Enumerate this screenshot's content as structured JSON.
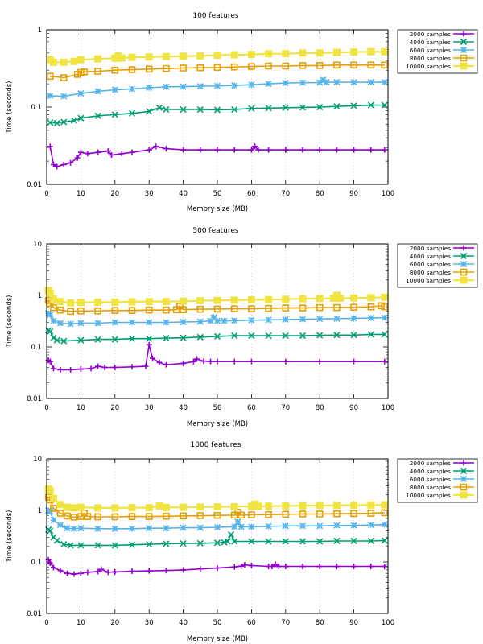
{
  "chart_data": [
    {
      "type": "line",
      "title": "100 features",
      "xlabel": "Memory size (MB)",
      "ylabel": "Time (seconds)",
      "yscale": "log",
      "xlim": [
        0,
        100
      ],
      "ylim": [
        0.01,
        1
      ],
      "xticks": [
        0,
        10,
        20,
        30,
        40,
        50,
        60,
        70,
        80,
        90,
        100
      ],
      "yticks": [
        0.01,
        0.1,
        1
      ],
      "ytick_labels": [
        "0.01",
        "0.1",
        "1"
      ],
      "grid": "vertical dotted",
      "legend": "outside-right-top",
      "series": [
        {
          "name": "2000 samples",
          "color": "#9400d3",
          "marker": "plus",
          "x": [
            1,
            2,
            3,
            5,
            7,
            9,
            10,
            12,
            15,
            18,
            19,
            22,
            25,
            30,
            32,
            35,
            40,
            45,
            50,
            55,
            60,
            61,
            62,
            65,
            70,
            75,
            80,
            85,
            90,
            95,
            99
          ],
          "y": [
            0.031,
            0.018,
            0.017,
            0.018,
            0.019,
            0.022,
            0.026,
            0.025,
            0.026,
            0.027,
            0.024,
            0.025,
            0.026,
            0.028,
            0.031,
            0.029,
            0.028,
            0.028,
            0.028,
            0.028,
            0.028,
            0.031,
            0.028,
            0.028,
            0.028,
            0.028,
            0.028,
            0.028,
            0.028,
            0.028,
            0.028
          ]
        },
        {
          "name": "4000 samples",
          "color": "#009e73",
          "marker": "x",
          "x": [
            1,
            3,
            5,
            8,
            10,
            15,
            20,
            25,
            30,
            33,
            35,
            40,
            45,
            50,
            55,
            60,
            65,
            70,
            75,
            80,
            85,
            90,
            95,
            99
          ],
          "y": [
            0.063,
            0.062,
            0.064,
            0.067,
            0.072,
            0.077,
            0.08,
            0.083,
            0.088,
            0.098,
            0.093,
            0.093,
            0.093,
            0.092,
            0.093,
            0.096,
            0.097,
            0.098,
            0.099,
            0.1,
            0.102,
            0.104,
            0.106,
            0.106
          ]
        },
        {
          "name": "6000 samples",
          "color": "#56b4e9",
          "marker": "star",
          "x": [
            1,
            5,
            10,
            15,
            20,
            25,
            30,
            35,
            40,
            45,
            50,
            55,
            60,
            65,
            70,
            75,
            80,
            81,
            82,
            85,
            90,
            95,
            99
          ],
          "y": [
            0.14,
            0.138,
            0.15,
            0.16,
            0.167,
            0.172,
            0.178,
            0.183,
            0.184,
            0.186,
            0.188,
            0.19,
            0.195,
            0.2,
            0.205,
            0.207,
            0.208,
            0.225,
            0.21,
            0.21,
            0.21,
            0.21,
            0.21
          ]
        },
        {
          "name": "8000 samples",
          "color": "#e69f00",
          "marker": "box",
          "x": [
            1,
            5,
            9,
            10,
            11,
            15,
            20,
            25,
            30,
            35,
            40,
            45,
            50,
            55,
            60,
            65,
            70,
            75,
            80,
            85,
            90,
            95,
            99
          ],
          "y": [
            0.25,
            0.24,
            0.265,
            0.28,
            0.285,
            0.29,
            0.3,
            0.305,
            0.31,
            0.315,
            0.32,
            0.322,
            0.325,
            0.33,
            0.335,
            0.34,
            0.34,
            0.345,
            0.345,
            0.35,
            0.35,
            0.35,
            0.35
          ]
        },
        {
          "name": "10000 samples",
          "color": "#f0e442",
          "marker": "filled-box",
          "x": [
            1,
            2,
            5,
            8,
            10,
            15,
            20,
            21,
            22,
            25,
            30,
            35,
            40,
            45,
            50,
            55,
            60,
            65,
            70,
            75,
            80,
            85,
            90,
            95,
            99
          ],
          "y": [
            0.41,
            0.38,
            0.38,
            0.39,
            0.41,
            0.42,
            0.43,
            0.46,
            0.43,
            0.44,
            0.445,
            0.45,
            0.455,
            0.46,
            0.47,
            0.475,
            0.48,
            0.49,
            0.49,
            0.5,
            0.5,
            0.51,
            0.515,
            0.52,
            0.52
          ]
        }
      ]
    },
    {
      "type": "line",
      "title": "500 features",
      "xlabel": "Memory size (MB)",
      "ylabel": "Time (seconds)",
      "yscale": "log",
      "xlim": [
        0,
        100
      ],
      "ylim": [
        0.01,
        10
      ],
      "xticks": [
        0,
        10,
        20,
        30,
        40,
        50,
        60,
        70,
        80,
        90,
        100
      ],
      "yticks": [
        0.01,
        0.1,
        1,
        10
      ],
      "ytick_labels": [
        "0.01",
        "0.1",
        "1",
        "10"
      ],
      "grid": "vertical dotted",
      "legend": "outside-right-top",
      "series": [
        {
          "name": "2000 samples",
          "color": "#9400d3",
          "marker": "plus",
          "x": [
            0.5,
            1,
            2,
            4,
            7,
            10,
            13,
            15,
            17,
            20,
            25,
            29,
            30,
            31,
            33,
            35,
            40,
            43,
            44,
            46,
            48,
            50,
            55,
            60,
            70,
            80,
            90,
            99
          ],
          "y": [
            0.055,
            0.052,
            0.038,
            0.036,
            0.036,
            0.037,
            0.038,
            0.042,
            0.04,
            0.04,
            0.041,
            0.042,
            0.11,
            0.06,
            0.05,
            0.045,
            0.048,
            0.052,
            0.058,
            0.053,
            0.052,
            0.052,
            0.052,
            0.052,
            0.052,
            0.052,
            0.052,
            0.052
          ]
        },
        {
          "name": "4000 samples",
          "color": "#009e73",
          "marker": "x",
          "x": [
            0.5,
            1,
            2,
            3,
            5,
            10,
            15,
            20,
            25,
            30,
            35,
            40,
            45,
            50,
            55,
            60,
            65,
            70,
            75,
            80,
            85,
            90,
            95,
            99
          ],
          "y": [
            0.21,
            0.2,
            0.15,
            0.135,
            0.13,
            0.135,
            0.14,
            0.14,
            0.145,
            0.145,
            0.148,
            0.15,
            0.155,
            0.16,
            0.165,
            0.165,
            0.165,
            0.165,
            0.165,
            0.168,
            0.17,
            0.17,
            0.175,
            0.175
          ]
        },
        {
          "name": "6000 samples",
          "color": "#56b4e9",
          "marker": "star",
          "x": [
            0.5,
            1,
            2,
            4,
            7,
            10,
            15,
            20,
            25,
            30,
            35,
            40,
            45,
            48,
            49,
            50,
            52,
            55,
            60,
            65,
            70,
            75,
            80,
            85,
            90,
            95,
            99
          ],
          "y": [
            0.45,
            0.42,
            0.32,
            0.29,
            0.28,
            0.29,
            0.29,
            0.3,
            0.3,
            0.3,
            0.3,
            0.305,
            0.31,
            0.32,
            0.375,
            0.32,
            0.32,
            0.325,
            0.33,
            0.335,
            0.34,
            0.345,
            0.35,
            0.355,
            0.36,
            0.365,
            0.37
          ]
        },
        {
          "name": "8000 samples",
          "color": "#e69f00",
          "marker": "box",
          "x": [
            0.5,
            1,
            2,
            4,
            7,
            10,
            15,
            20,
            25,
            30,
            35,
            38,
            39,
            40,
            45,
            50,
            55,
            60,
            65,
            70,
            75,
            80,
            85,
            90,
            95,
            98,
            99
          ],
          "y": [
            0.8,
            0.7,
            0.58,
            0.52,
            0.49,
            0.5,
            0.5,
            0.51,
            0.51,
            0.52,
            0.52,
            0.53,
            0.62,
            0.53,
            0.54,
            0.545,
            0.55,
            0.55,
            0.56,
            0.57,
            0.57,
            0.58,
            0.58,
            0.59,
            0.6,
            0.63,
            0.6
          ]
        },
        {
          "name": "10000 samples",
          "color": "#f0e442",
          "marker": "filled-box",
          "x": [
            0.5,
            1,
            2,
            4,
            7,
            10,
            15,
            20,
            25,
            30,
            35,
            40,
            45,
            50,
            55,
            60,
            65,
            70,
            75,
            80,
            84,
            85,
            86,
            90,
            95,
            99
          ],
          "y": [
            1.25,
            1.1,
            0.85,
            0.76,
            0.72,
            0.73,
            0.74,
            0.74,
            0.75,
            0.76,
            0.76,
            0.77,
            0.79,
            0.8,
            0.81,
            0.82,
            0.83,
            0.84,
            0.86,
            0.87,
            0.88,
            1.0,
            0.88,
            0.89,
            0.9,
            0.92
          ]
        }
      ]
    },
    {
      "type": "line",
      "title": "1000 features",
      "xlabel": "Memory size (MB)",
      "ylabel": "Time (seconds)",
      "yscale": "log",
      "xlim": [
        0,
        100
      ],
      "ylim": [
        0.01,
        10
      ],
      "xticks": [
        0,
        10,
        20,
        30,
        40,
        50,
        60,
        70,
        80,
        90,
        100
      ],
      "yticks": [
        0.01,
        0.1,
        1,
        10
      ],
      "ytick_labels": [
        "0.01",
        "0.1",
        "1",
        "10"
      ],
      "grid": "vertical dotted",
      "legend": "outside-right-top",
      "series": [
        {
          "name": "2000 samples",
          "color": "#9400d3",
          "marker": "plus",
          "x": [
            0.5,
            1,
            2,
            4,
            6,
            8,
            10,
            12,
            15,
            16,
            18,
            20,
            25,
            30,
            35,
            40,
            45,
            50,
            55,
            57,
            58,
            60,
            65,
            66,
            67,
            68,
            70,
            75,
            80,
            85,
            90,
            95,
            99
          ],
          "y": [
            0.11,
            0.095,
            0.078,
            0.068,
            0.06,
            0.058,
            0.06,
            0.063,
            0.065,
            0.072,
            0.063,
            0.064,
            0.066,
            0.067,
            0.068,
            0.07,
            0.073,
            0.076,
            0.08,
            0.083,
            0.088,
            0.085,
            0.082,
            0.082,
            0.09,
            0.082,
            0.082,
            0.082,
            0.082,
            0.082,
            0.082,
            0.082,
            0.082
          ]
        },
        {
          "name": "4000 samples",
          "color": "#009e73",
          "marker": "x",
          "x": [
            0.5,
            1,
            2,
            3,
            5,
            7,
            10,
            15,
            20,
            25,
            30,
            35,
            40,
            45,
            50,
            52,
            53,
            54,
            55,
            60,
            65,
            70,
            75,
            80,
            85,
            90,
            95,
            99
          ],
          "y": [
            0.42,
            0.4,
            0.3,
            0.26,
            0.22,
            0.21,
            0.21,
            0.21,
            0.21,
            0.215,
            0.22,
            0.225,
            0.228,
            0.23,
            0.235,
            0.24,
            0.25,
            0.34,
            0.25,
            0.25,
            0.25,
            0.25,
            0.25,
            0.25,
            0.255,
            0.255,
            0.255,
            0.26
          ]
        },
        {
          "name": "6000 samples",
          "color": "#56b4e9",
          "marker": "star",
          "x": [
            0.5,
            1,
            2,
            4,
            6,
            8,
            10,
            15,
            20,
            25,
            30,
            35,
            40,
            45,
            50,
            55,
            56,
            57,
            60,
            65,
            70,
            75,
            80,
            85,
            90,
            95,
            99
          ],
          "y": [
            1.0,
            0.95,
            0.65,
            0.52,
            0.45,
            0.44,
            0.45,
            0.44,
            0.44,
            0.44,
            0.45,
            0.45,
            0.46,
            0.46,
            0.47,
            0.48,
            0.6,
            0.48,
            0.48,
            0.49,
            0.5,
            0.5,
            0.5,
            0.51,
            0.51,
            0.52,
            0.53
          ]
        },
        {
          "name": "8000 samples",
          "color": "#e69f00",
          "marker": "box",
          "x": [
            0.5,
            1,
            2,
            4,
            6,
            8,
            10,
            11,
            12,
            15,
            20,
            25,
            30,
            35,
            40,
            45,
            50,
            55,
            56,
            57,
            60,
            65,
            70,
            75,
            80,
            85,
            90,
            95,
            99
          ],
          "y": [
            1.8,
            1.6,
            1.1,
            0.88,
            0.78,
            0.74,
            0.76,
            0.88,
            0.76,
            0.75,
            0.75,
            0.76,
            0.76,
            0.77,
            0.78,
            0.79,
            0.8,
            0.81,
            0.92,
            0.81,
            0.82,
            0.83,
            0.84,
            0.85,
            0.85,
            0.86,
            0.87,
            0.88,
            0.9
          ]
        },
        {
          "name": "10000 samples",
          "color": "#f0e442",
          "marker": "filled-box",
          "x": [
            0.5,
            1,
            2,
            4,
            6,
            8,
            10,
            15,
            20,
            25,
            30,
            33,
            35,
            40,
            45,
            50,
            55,
            60,
            61,
            62,
            65,
            70,
            75,
            80,
            85,
            90,
            95,
            99
          ],
          "y": [
            2.6,
            2.4,
            1.7,
            1.3,
            1.15,
            1.12,
            1.15,
            1.12,
            1.12,
            1.13,
            1.13,
            1.22,
            1.14,
            1.15,
            1.16,
            1.17,
            1.18,
            1.2,
            1.32,
            1.2,
            1.21,
            1.22,
            1.23,
            1.24,
            1.25,
            1.26,
            1.27,
            1.28
          ]
        }
      ]
    }
  ]
}
